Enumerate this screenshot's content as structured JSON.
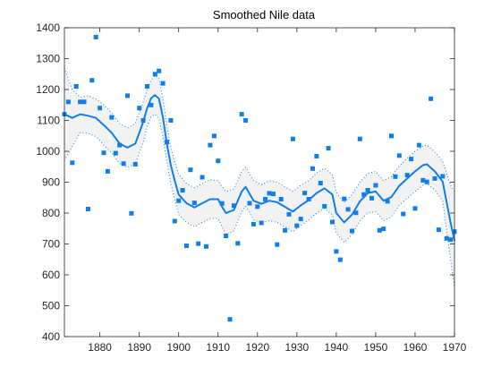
{
  "chart_data": {
    "type": "scatter",
    "title": "Smoothed Nile data",
    "xlabel": "",
    "ylabel": "",
    "xlim": [
      1871,
      1970
    ],
    "ylim": [
      400,
      1400
    ],
    "xticks": [
      1880,
      1890,
      1900,
      1910,
      1920,
      1930,
      1940,
      1950,
      1960,
      1970
    ],
    "yticks": [
      400,
      500,
      600,
      700,
      800,
      900,
      1000,
      1100,
      1200,
      1300,
      1400
    ],
    "grid": false,
    "legend": "none",
    "colors": {
      "points": "#0f7ee8",
      "smooth": "#0f7ee8",
      "band_fill": "#f2f2f2",
      "band_edge": "#0f7ee8",
      "axes": "#262626"
    },
    "series": [
      {
        "kind": "points",
        "x": [
          1871,
          1872,
          1873,
          1874,
          1875,
          1876,
          1877,
          1878,
          1879,
          1880,
          1881,
          1882,
          1883,
          1884,
          1885,
          1886,
          1887,
          1888,
          1889,
          1890,
          1891,
          1892,
          1893,
          1894,
          1895,
          1896,
          1897,
          1898,
          1899,
          1900,
          1901,
          1902,
          1903,
          1904,
          1905,
          1906,
          1907,
          1908,
          1909,
          1910,
          1911,
          1912,
          1913,
          1914,
          1915,
          1916,
          1917,
          1918,
          1919,
          1920,
          1921,
          1922,
          1923,
          1924,
          1925,
          1926,
          1927,
          1928,
          1929,
          1930,
          1931,
          1932,
          1933,
          1934,
          1935,
          1936,
          1937,
          1938,
          1939,
          1940,
          1941,
          1942,
          1943,
          1944,
          1945,
          1946,
          1947,
          1948,
          1949,
          1950,
          1951,
          1952,
          1953,
          1954,
          1955,
          1956,
          1957,
          1958,
          1959,
          1960,
          1961,
          1962,
          1963,
          1964,
          1965,
          1966,
          1967,
          1968,
          1969,
          1970
        ],
        "y": [
          1120,
          1160,
          963,
          1210,
          1160,
          1160,
          813,
          1230,
          1370,
          1140,
          995,
          935,
          1110,
          994,
          1020,
          960,
          1180,
          799,
          958,
          1140,
          1100,
          1210,
          1150,
          1250,
          1260,
          1220,
          1030,
          1100,
          774,
          840,
          874,
          694,
          940,
          833,
          701,
          916,
          692,
          1020,
          1050,
          969,
          831,
          726,
          456,
          824,
          702,
          1120,
          1100,
          832,
          764,
          821,
          768,
          845,
          864,
          862,
          698,
          845,
          744,
          796,
          1040,
          759,
          781,
          865,
          845,
          944,
          984,
          897,
          822,
          1010,
          771,
          676,
          649,
          846,
          812,
          742,
          801,
          1040,
          860,
          874,
          848,
          890,
          744,
          749,
          838,
          1050,
          918,
          986,
          797,
          923,
          975,
          815,
          1020,
          906,
          901,
          1170,
          912,
          746,
          919,
          718,
          714,
          740
        ]
      },
      {
        "kind": "smooth",
        "x": [
          1871,
          1873,
          1875,
          1877,
          1879,
          1881,
          1883,
          1885,
          1887,
          1889,
          1891,
          1892,
          1893,
          1894,
          1895,
          1896,
          1897,
          1898,
          1899,
          1900,
          1902,
          1904,
          1906,
          1908,
          1910,
          1911,
          1912,
          1914,
          1916,
          1917,
          1919,
          1921,
          1923,
          1925,
          1927,
          1929,
          1931,
          1933,
          1935,
          1937,
          1939,
          1940,
          1942,
          1944,
          1946,
          1948,
          1950,
          1952,
          1954,
          1956,
          1958,
          1960,
          1962,
          1963,
          1965,
          1967,
          1969,
          1970
        ],
        "y": [
          1120,
          1108,
          1120,
          1115,
          1108,
          1085,
          1060,
          1025,
          1012,
          1025,
          1095,
          1140,
          1172,
          1182,
          1170,
          1110,
          1025,
          955,
          905,
          860,
          832,
          818,
          832,
          845,
          845,
          820,
          800,
          810,
          870,
          885,
          840,
          830,
          840,
          835,
          820,
          805,
          825,
          842,
          865,
          880,
          860,
          800,
          770,
          795,
          838,
          865,
          870,
          840,
          852,
          888,
          912,
          935,
          955,
          958,
          935,
          902,
          770,
          710
        ]
      },
      {
        "kind": "band_upper",
        "x": [
          1871,
          1873,
          1875,
          1877,
          1879,
          1881,
          1883,
          1885,
          1887,
          1889,
          1891,
          1892,
          1893,
          1894,
          1895,
          1896,
          1897,
          1898,
          1899,
          1900,
          1902,
          1904,
          1906,
          1908,
          1910,
          1911,
          1912,
          1914,
          1916,
          1917,
          1919,
          1921,
          1923,
          1925,
          1927,
          1929,
          1931,
          1933,
          1935,
          1937,
          1939,
          1940,
          1942,
          1944,
          1946,
          1948,
          1950,
          1952,
          1954,
          1956,
          1958,
          1960,
          1962,
          1963,
          1965,
          1967,
          1969,
          1970
        ],
        "y": [
          1270,
          1200,
          1175,
          1180,
          1170,
          1150,
          1125,
          1090,
          1076,
          1090,
          1160,
          1200,
          1230,
          1245,
          1238,
          1170,
          1085,
          1015,
          965,
          925,
          895,
          882,
          895,
          908,
          905,
          885,
          870,
          878,
          935,
          948,
          905,
          892,
          905,
          900,
          885,
          870,
          890,
          905,
          930,
          945,
          925,
          866,
          835,
          860,
          900,
          928,
          935,
          905,
          918,
          952,
          978,
          1000,
          1018,
          1020,
          998,
          968,
          890,
          870
        ]
      },
      {
        "kind": "band_lower",
        "x": [
          1871,
          1873,
          1875,
          1877,
          1879,
          1881,
          1883,
          1885,
          1887,
          1889,
          1891,
          1892,
          1893,
          1894,
          1895,
          1896,
          1897,
          1898,
          1899,
          1900,
          1902,
          1904,
          1906,
          1908,
          1910,
          1911,
          1912,
          1914,
          1916,
          1917,
          1919,
          1921,
          1923,
          1925,
          1927,
          1929,
          1931,
          1933,
          1935,
          1937,
          1939,
          1940,
          1942,
          1944,
          1946,
          1948,
          1950,
          1952,
          1954,
          1956,
          1958,
          1960,
          1962,
          1963,
          1965,
          1967,
          1969,
          1970
        ],
        "y": [
          970,
          1015,
          1060,
          1058,
          1048,
          1020,
          995,
          960,
          948,
          960,
          1030,
          1080,
          1112,
          1120,
          1105,
          1050,
          965,
          895,
          845,
          795,
          770,
          755,
          770,
          782,
          783,
          755,
          730,
          742,
          805,
          822,
          778,
          768,
          775,
          770,
          755,
          740,
          760,
          778,
          800,
          815,
          795,
          735,
          705,
          730,
          775,
          800,
          805,
          775,
          788,
          825,
          848,
          870,
          890,
          895,
          875,
          840,
          650,
          560
        ]
      }
    ]
  }
}
